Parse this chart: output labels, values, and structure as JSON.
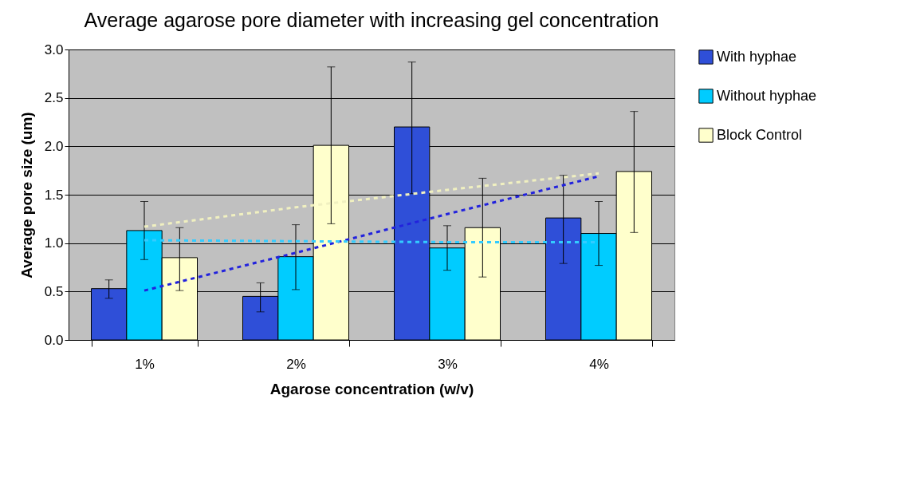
{
  "chart_data": {
    "type": "bar",
    "title": "Average agarose pore diameter with increasing gel concentration",
    "xlabel": "Agarose concentration (w/v)",
    "ylabel": "Average pore size (um)",
    "categories": [
      "1%",
      "2%",
      "3%",
      "4%"
    ],
    "series": [
      {
        "name": "With hyphae",
        "color": "#2f4fd8",
        "values": [
          0.53,
          0.45,
          2.2,
          1.26
        ],
        "errors": [
          [
            0.43,
            0.62
          ],
          [
            0.29,
            0.59
          ],
          [
            1.51,
            2.87
          ],
          [
            0.79,
            1.7
          ]
        ]
      },
      {
        "name": "Without hyphae",
        "color": "#00ccff",
        "values": [
          1.13,
          0.86,
          0.95,
          1.1
        ],
        "errors": [
          [
            0.83,
            1.43
          ],
          [
            0.52,
            1.19
          ],
          [
            0.72,
            1.18
          ],
          [
            0.77,
            1.43
          ]
        ]
      },
      {
        "name": "Block Control",
        "color": "#ffffcc",
        "values": [
          0.85,
          2.01,
          1.16,
          1.74
        ],
        "errors": [
          [
            0.51,
            1.16
          ],
          [
            1.2,
            2.82
          ],
          [
            0.65,
            1.67
          ],
          [
            1.11,
            2.36
          ]
        ]
      },
      {
        "type": "line",
        "color": "#2222dd",
        "line_style": "dashed",
        "values": [
          0.51,
          0.9,
          1.3,
          1.69
        ]
      },
      {
        "type": "line",
        "color": "#33ccff",
        "line_style": "dashed",
        "values": [
          1.03,
          1.02,
          1.01,
          1.01
        ]
      },
      {
        "type": "line",
        "color": "#f0f0c0",
        "line_style": "dashed",
        "values": [
          1.17,
          1.37,
          1.55,
          1.72
        ]
      }
    ],
    "ylim": [
      0,
      3
    ],
    "yticks": [
      {
        "value": 0,
        "label": "0.0"
      },
      {
        "value": 0.5,
        "label": "0.5"
      },
      {
        "value": 1,
        "label": "1.0"
      },
      {
        "value": 1.5,
        "label": "1.5"
      },
      {
        "value": 2,
        "label": "2.0"
      },
      {
        "value": 2.5,
        "label": "2.5"
      },
      {
        "value": 3,
        "label": "3.0"
      }
    ],
    "grid": "y",
    "legend": "right"
  }
}
